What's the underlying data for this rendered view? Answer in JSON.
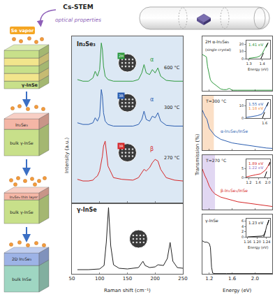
{
  "header": {
    "labels": [
      "Cs-STEM",
      "optical properties"
    ]
  },
  "schematic": {
    "steps": [
      {
        "labels": [
          "Se vapor",
          "γ-InSe"
        ]
      },
      {
        "labels": [
          "In₂Se₃",
          "bulk γ-InSe"
        ]
      },
      {
        "labels": [
          "In₂Se₃ thin layer",
          "bulk γ-InSe"
        ]
      },
      {
        "labels": [
          "2D In₂Se₃",
          "bulk InSe"
        ]
      }
    ]
  },
  "chart_data": [
    {
      "type": "line",
      "x_label": "Raman shift (cm⁻¹)",
      "y_label": "Intensity (a.u.)",
      "xlim": [
        50,
        250
      ],
      "xticks": [
        50,
        100,
        150,
        200,
        250
      ],
      "ylim": [
        0,
        10
      ],
      "tick_labels": "x",
      "grid": false,
      "panels": [
        {
          "title": "In₂Se₃",
          "x": [
            60,
            70,
            80,
            88,
            92,
            96,
            100,
            103,
            105,
            107,
            110,
            115,
            125,
            140,
            160,
            170,
            176,
            180,
            184,
            190,
            195,
            200,
            205,
            210,
            220,
            235,
            250
          ],
          "series": [
            {
              "color": "#2f9a3e",
              "phase": "α",
              "label": "600 °C",
              "structure": "2H",
              "values": [
                7.4,
                7.3,
                7.3,
                7.5,
                7.9,
                7.6,
                8.0,
                9.6,
                9.2,
                8.2,
                7.6,
                7.4,
                7.3,
                7.3,
                7.3,
                7.4,
                7.8,
                8.3,
                7.8,
                7.7,
                8.0,
                7.8,
                8.1,
                7.6,
                7.35,
                7.3,
                7.3
              ]
            },
            {
              "color": "#2a5db0",
              "phase": "α",
              "label": "300 °C",
              "structure": "3R",
              "values": [
                4.8,
                4.7,
                4.7,
                4.8,
                5.1,
                4.9,
                5.2,
                6.8,
                6.4,
                5.4,
                4.9,
                4.7,
                4.6,
                4.6,
                4.6,
                4.7,
                5.0,
                5.5,
                5.0,
                4.9,
                5.2,
                5.1,
                5.4,
                4.9,
                4.65,
                4.6,
                4.6
              ]
            },
            {
              "color": "#d62728",
              "phase": "β",
              "label": "270 °C",
              "structure": "3R",
              "values": [
                1.4,
                1.3,
                1.3,
                1.35,
                1.5,
                1.6,
                1.9,
                2.4,
                2.8,
                3.4,
                3.7,
                2.2,
                1.5,
                1.4,
                1.35,
                1.5,
                1.8,
                2.0,
                1.9,
                2.1,
                2.4,
                2.6,
                2.5,
                2.0,
                1.5,
                1.35,
                1.3
              ]
            }
          ]
        },
        {
          "title": "γ-InSe",
          "x": [
            60,
            80,
            100,
            108,
            112,
            116,
            120,
            125,
            135,
            150,
            170,
            175,
            178,
            182,
            190,
            200,
            205,
            215,
            222,
            227,
            232,
            240,
            250
          ],
          "series": [
            {
              "color": "#222222",
              "values": [
                0.6,
                0.6,
                0.7,
                1.2,
                4.5,
                9.5,
                4.0,
                1.3,
                0.8,
                0.7,
                0.9,
                1.4,
                1.8,
                1.2,
                0.9,
                1.0,
                1.3,
                1.2,
                2.2,
                4.5,
                1.8,
                0.9,
                0.8
              ]
            }
          ]
        }
      ]
    },
    {
      "type": "line",
      "x_label": "Energy (eV)",
      "y_label": "Transmission (%)",
      "xlim": [
        1.08,
        2.3
      ],
      "xticks": [
        1.2,
        1.6,
        {
          "value": 2.0,
          "label": "2.0"
        }
      ],
      "tick_labels": "x",
      "grid": false,
      "panels": [
        {
          "ylim": [
            0,
            45
          ],
          "labels": [
            {
              "text": "2H α-In₂Se₃",
              "color": "#222222"
            },
            {
              "text": "(single crystal)",
              "color": "#222222"
            }
          ],
          "x": [
            1.08,
            1.12,
            1.15,
            1.17,
            1.2,
            1.22,
            1.25,
            1.3,
            1.35,
            1.4,
            1.45,
            1.5,
            1.55,
            1.6,
            1.7,
            1.8,
            2.0,
            2.2,
            2.3
          ],
          "series": [
            {
              "color": "#2f9a3e",
              "values": [
                30,
                29,
                28,
                20,
                12,
                9,
                7,
                5,
                3,
                1.5,
                1,
                1,
                2,
                0.5,
                0.5,
                0.5,
                0.5,
                0.5,
                0.5
              ]
            }
          ],
          "inset": {
            "type": "line",
            "xlim": [
              1.28,
              1.46
            ],
            "ylim": [
              0,
              25
            ],
            "xticks": [
              1.3,
              1.4
            ],
            "yticks": [
              0,
              10,
              20
            ],
            "x_label": "Energy (eV)",
            "series": [
              {
                "color": "#2f9a3e",
                "x": [
                  1.3,
                  1.33,
                  1.36,
                  1.38,
                  1.4,
                  1.42,
                  1.44
                ],
                "values": [
                  0.5,
                  1,
                  2,
                  3.5,
                  7,
                  14,
                  21
                ]
              },
              {
                "color": "#000000",
                "line_style": "dash",
                "x": [
                  1.39,
                  1.445
                ],
                "values": [
                  0,
                  22
                ]
              }
            ],
            "labels": [
              {
                "text": "1.41 eV",
                "color": "#2f9a3e"
              }
            ]
          }
        },
        {
          "ylim": [
            0,
            30
          ],
          "shaded": {
            "range": [
              1.08,
              1.28
            ],
            "color": "#f9c9a0"
          },
          "labels": [
            {
              "text": "T=300 °C",
              "color": "#222222"
            },
            {
              "text": "α-In₂Se₃/InSe",
              "color": "#2a5db0"
            }
          ],
          "x": [
            1.08,
            1.12,
            1.16,
            1.2,
            1.25,
            1.3,
            1.4,
            1.5,
            1.6,
            1.7,
            1.8,
            1.9,
            2.0,
            2.1,
            2.2,
            2.3
          ],
          "series": [
            {
              "color": "#2a5db0",
              "values": [
                22,
                19,
                17,
                12,
                10,
                8,
                6,
                5,
                4,
                3.5,
                3,
                2.5,
                2,
                1.5,
                1.2,
                1
              ]
            }
          ],
          "inset": {
            "type": "line",
            "xlim": [
              1.1,
              1.75
            ],
            "ylim": [
              0,
              15
            ],
            "xticks": [
              1.6
            ],
            "yticks": [
              0,
              10
            ],
            "series": [
              {
                "color": "#2a5db0",
                "x": [
                  1.1,
                  1.2,
                  1.3,
                  1.4,
                  1.5,
                  1.55,
                  1.6,
                  1.65,
                  1.7
                ],
                "values": [
                  0.5,
                  1,
                  1.5,
                  2,
                  3,
                  4,
                  7,
                  10,
                  13
                ]
              },
              {
                "color": "#000000",
                "line_style": "dash",
                "x": [
                  1.54,
                  1.7
                ],
                "values": [
                  0,
                  13
                ]
              }
            ],
            "labels": [
              {
                "text": "1.55 eV",
                "color": "#2a5db0"
              },
              {
                "text": "1.18 eV",
                "color": "#f08a3c"
              }
            ]
          }
        },
        {
          "ylim": [
            0,
            35
          ],
          "shaded": {
            "range": [
              1.08,
              1.3
            ],
            "color": "#cdbdea"
          },
          "labels": [
            {
              "text": "T=270 °C",
              "color": "#222222"
            },
            {
              "text": "β-In₂Se₃/InSe",
              "color": "#d62728"
            }
          ],
          "x": [
            1.08,
            1.12,
            1.16,
            1.2,
            1.25,
            1.3,
            1.4,
            1.5,
            1.6,
            1.7,
            1.8,
            1.9,
            2.0,
            2.1,
            2.2,
            2.3
          ],
          "series": [
            {
              "color": "#d62728",
              "values": [
                26,
                22,
                19,
                15,
                12,
                10,
                8,
                7,
                6,
                5,
                4.5,
                4,
                3.5,
                3,
                2.5,
                2
              ]
            }
          ],
          "inset": {
            "type": "line",
            "xlim": [
              1.1,
              2.1
            ],
            "ylim": [
              0,
              10
            ],
            "xticks": [
              1.2,
              1.6,
              {
                "value": 2.0,
                "label": "2.0"
              }
            ],
            "yticks": [
              0,
              5
            ],
            "series": [
              {
                "color": "#d62728",
                "x": [
                  1.1,
                  1.3,
                  1.5,
                  1.7,
                  1.8,
                  1.9,
                  2.0,
                  2.1
                ],
                "values": [
                  0.3,
                  1,
                  1.5,
                  2,
                  3,
                  4,
                  6,
                  8.5
                ]
              },
              {
                "color": "#000000",
                "line_style": "dash",
                "x": [
                  1.87,
                  2.1
                ],
                "values": [
                  0,
                  8.5
                ]
              }
            ],
            "labels": [
              {
                "text": "1.89 eV",
                "color": "#d62728"
              },
              {
                "text": "1.22 eV",
                "color": "#8e6cc4"
              }
            ]
          }
        },
        {
          "ylim": [
            0,
            45
          ],
          "labels": [
            {
              "text": "γ-InSe",
              "color": "#222222"
            }
          ],
          "x": [
            1.08,
            1.12,
            1.16,
            1.2,
            1.22,
            1.24,
            1.26,
            1.3,
            1.5,
            1.8,
            2.1,
            2.3
          ],
          "series": [
            {
              "color": "#222222",
              "values": [
                25,
                24,
                24,
                23,
                20,
                5,
                0.5,
                0.2,
                0.2,
                0.2,
                0.2,
                0.2
              ]
            }
          ],
          "inset": {
            "type": "line",
            "xlim": [
              1.155,
              1.255
            ],
            "ylim": [
              0,
              7
            ],
            "xticks": [
              1.16,
              {
                "value": 1.2,
                "label": "1.20"
              },
              1.24
            ],
            "yticks": [
              0,
              2,
              4,
              6
            ],
            "x_label": "Energy (eV)",
            "series": [
              {
                "color": "#222222",
                "x": [
                  1.16,
                  1.18,
                  1.2,
                  1.22,
                  1.23,
                  1.235,
                  1.24,
                  1.245,
                  1.25
                ],
                "values": [
                  0,
                  0.05,
                  0.1,
                  0.3,
                  0.8,
                  2,
                  4,
                  5.5,
                  6.5
                ]
              },
              {
                "color": "#000000",
                "line_style": "dash",
                "x": [
                  1.228,
                  1.25
                ],
                "values": [
                  0,
                  6.5
                ]
              }
            ],
            "labels": [
              {
                "text": "1.23 eV",
                "color": "#222222"
              }
            ]
          }
        }
      ]
    }
  ]
}
